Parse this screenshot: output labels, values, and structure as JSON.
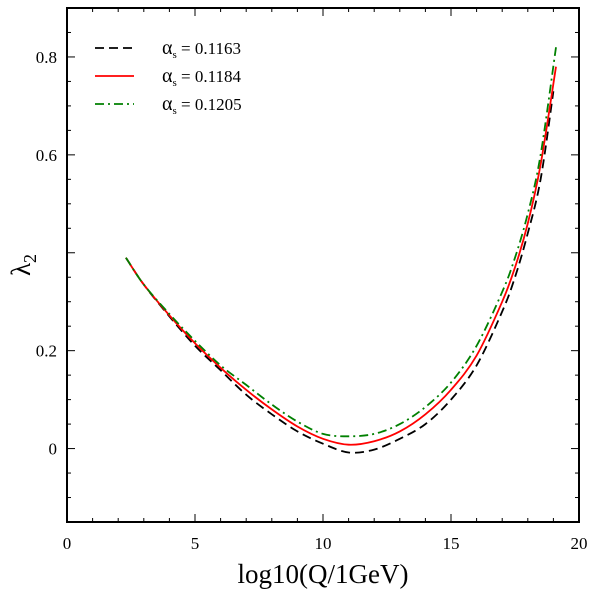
{
  "chart_data": {
    "type": "line",
    "xlabel": "log10(Q/1GeV)",
    "ylabel": "λ2",
    "xlim": [
      0,
      20
    ],
    "ylim": [
      -0.15,
      0.9
    ],
    "x_ticks": [
      "0",
      "5",
      "10",
      "15",
      "20"
    ],
    "y_ticks": [
      "0",
      "0.2",
      "0.6",
      "0.8"
    ],
    "y_tick_values": [
      0,
      0.2,
      0.6,
      0.8
    ],
    "grid": false,
    "legend_position": "top-left",
    "series": [
      {
        "name": "αs = 0.1163",
        "name_symbol": "α",
        "name_sub": "s",
        "name_rest": " = 0.1163",
        "color": "#000000",
        "style": "dashed",
        "x": [
          2.3,
          3,
          4,
          5,
          6,
          7,
          8,
          9,
          10,
          11,
          12,
          13,
          14,
          15,
          16,
          17,
          17.5,
          18,
          18.5,
          19
        ],
        "y": [
          0.39,
          0.335,
          0.27,
          0.21,
          0.16,
          0.11,
          0.07,
          0.035,
          0.01,
          -0.008,
          -0.002,
          0.02,
          0.05,
          0.1,
          0.17,
          0.28,
          0.35,
          0.44,
          0.55,
          0.73
        ]
      },
      {
        "name": "αs = 0.1184",
        "name_symbol": "α",
        "name_sub": "s",
        "name_rest": " = 0.1184",
        "color": "#ff0000",
        "style": "solid",
        "x": [
          2.3,
          3,
          4,
          5,
          6,
          7,
          8,
          9,
          10,
          11,
          12,
          13,
          14,
          15,
          16,
          17,
          17.5,
          18,
          18.5,
          19.1
        ],
        "y": [
          0.39,
          0.335,
          0.272,
          0.215,
          0.165,
          0.12,
          0.08,
          0.045,
          0.02,
          0.008,
          0.015,
          0.035,
          0.07,
          0.12,
          0.19,
          0.3,
          0.37,
          0.46,
          0.58,
          0.78
        ]
      },
      {
        "name": "αs = 0.1205",
        "name_symbol": "α",
        "name_sub": "s",
        "name_rest": " = 0.1205",
        "color": "#008000",
        "style": "dashdot",
        "x": [
          2.3,
          3,
          4,
          5,
          6,
          7,
          8,
          9,
          10,
          11,
          12,
          13,
          14,
          15,
          16,
          17,
          17.5,
          18,
          18.5,
          19.1
        ],
        "y": [
          0.39,
          0.335,
          0.275,
          0.22,
          0.17,
          0.13,
          0.09,
          0.055,
          0.03,
          0.025,
          0.03,
          0.05,
          0.085,
          0.135,
          0.21,
          0.32,
          0.39,
          0.48,
          0.6,
          0.82
        ]
      }
    ]
  }
}
